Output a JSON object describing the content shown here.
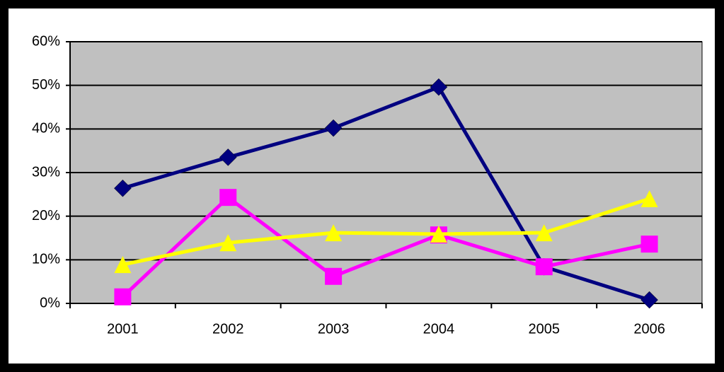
{
  "chart_data": {
    "type": "line",
    "categories": [
      "2001",
      "2002",
      "2003",
      "2004",
      "2005",
      "2006"
    ],
    "series": [
      {
        "color": "#000080",
        "marker": "diamond",
        "values": [
          26.4,
          33.5,
          40.2,
          49.6,
          8.4,
          0.8
        ]
      },
      {
        "color": "#ff00ff",
        "marker": "square",
        "values": [
          1.5,
          24.3,
          6.2,
          15.7,
          8.4,
          13.6
        ]
      },
      {
        "color": "#ffff00",
        "marker": "triangle",
        "values": [
          8.9,
          13.9,
          16.2,
          15.9,
          16.2,
          24.0
        ]
      }
    ],
    "ylim": [
      0,
      60
    ],
    "yticks": [
      {
        "value": 0,
        "label": "0%"
      },
      {
        "value": 10,
        "label": "10%"
      },
      {
        "value": 20,
        "label": "20%"
      },
      {
        "value": 30,
        "label": "30%"
      },
      {
        "value": 40,
        "label": "40%"
      },
      {
        "value": 50,
        "label": "50%"
      },
      {
        "value": 60,
        "label": "60%"
      }
    ],
    "grid": true,
    "plot_background": "#c0c0c0"
  }
}
